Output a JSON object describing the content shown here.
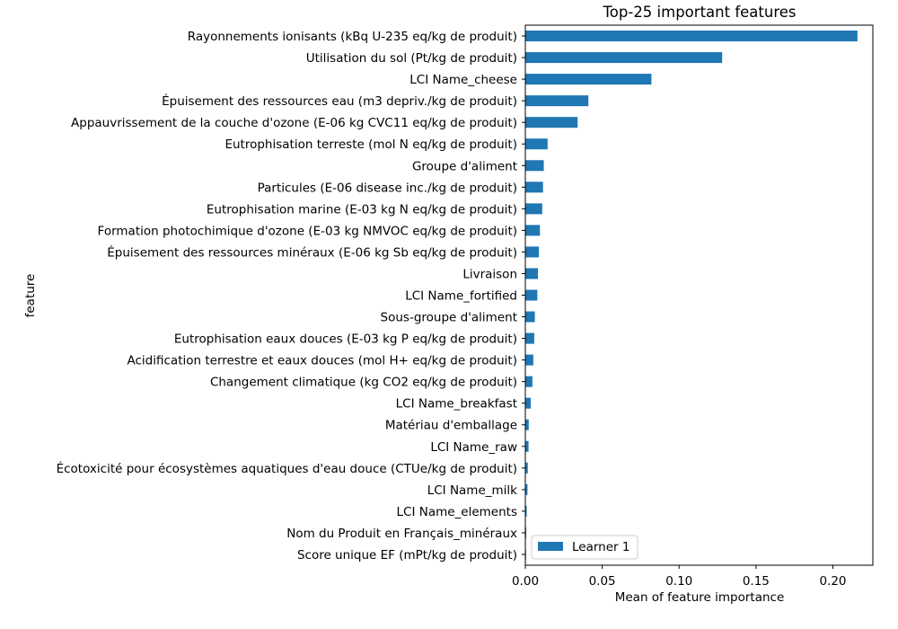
{
  "chart_data": {
    "type": "bar",
    "orientation": "horizontal",
    "title": "Top-25 important features",
    "xlabel": "Mean of feature importance",
    "ylabel": "feature",
    "xlim": [
      0,
      0.226
    ],
    "xticks": [
      0.0,
      0.05,
      0.1,
      0.15,
      0.2
    ],
    "xtick_labels": [
      "0.00",
      "0.05",
      "0.10",
      "0.15",
      "0.20"
    ],
    "grid": false,
    "legend_position": "lower-left",
    "bar_color": "#1f77b4",
    "series": [
      {
        "name": "Learner 1",
        "categories": [
          "Rayonnements ionisants (kBq U-235 eq/kg de produit)",
          "Utilisation du sol (Pt/kg de produit)",
          "LCI Name_cheese",
          "Épuisement des ressources eau (m3 depriv./kg de produit)",
          "Appauvrissement de la couche d'ozone (E-06 kg CVC11 eq/kg de produit)",
          "Eutrophisation terreste (mol N eq/kg de produit)",
          "Groupe d'aliment",
          "Particules (E-06 disease inc./kg de produit)",
          "Eutrophisation marine (E-03 kg N eq/kg de produit)",
          "Formation photochimique d'ozone (E-03 kg NMVOC eq/kg de produit)",
          "Épuisement des ressources minéraux (E-06 kg Sb eq/kg de produit)",
          "Livraison",
          "LCI Name_fortified",
          "Sous-groupe d'aliment",
          "Eutrophisation eaux douces (E-03 kg P eq/kg de produit)",
          "Acidification terrestre et eaux douces (mol H+ eq/kg de produit)",
          "Changement climatique (kg CO2 eq/kg de produit)",
          "LCI Name_breakfast",
          "Matériau d'emballage",
          "LCI Name_raw",
          "Écotoxicité pour écosystèmes aquatiques d'eau douce (CTUe/kg de produit)",
          "LCI Name_milk",
          "LCI Name_elements",
          "Nom du Produit en Français_minéraux",
          "Score unique EF (mPt/kg de produit)"
        ],
        "values": [
          0.216,
          0.128,
          0.082,
          0.041,
          0.034,
          0.0145,
          0.012,
          0.0115,
          0.011,
          0.0095,
          0.0088,
          0.0082,
          0.0078,
          0.0062,
          0.0058,
          0.0052,
          0.0046,
          0.0035,
          0.0022,
          0.0021,
          0.0016,
          0.0014,
          0.0009,
          0.0006,
          0.0004
        ]
      }
    ]
  }
}
